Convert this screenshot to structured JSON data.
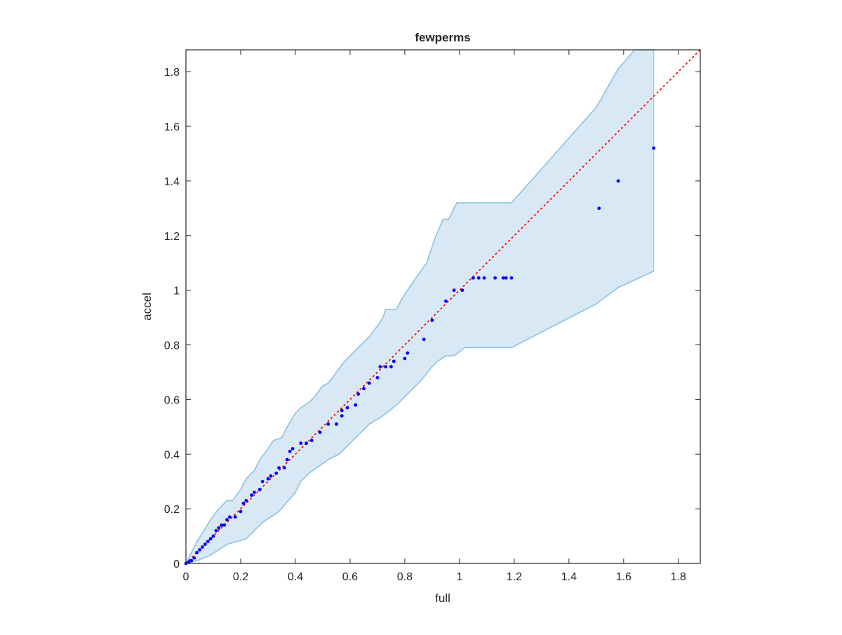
{
  "chart_data": {
    "type": "scatter",
    "title": "fewperms",
    "xlabel": "full",
    "ylabel": "accel",
    "xlim": [
      0,
      1.88
    ],
    "ylim": [
      0,
      1.88
    ],
    "xticks": [
      "0",
      "0.2",
      "0.4",
      "0.6",
      "0.8",
      "1",
      "1.2",
      "1.4",
      "1.6",
      "1.8"
    ],
    "yticks": [
      "0",
      "0.2",
      "0.4",
      "0.6",
      "0.8",
      "1",
      "1.2",
      "1.4",
      "1.6",
      "1.8"
    ],
    "xtick_values": [
      0,
      0.2,
      0.4,
      0.6,
      0.8,
      1,
      1.2,
      1.4,
      1.6,
      1.8
    ],
    "ytick_values": [
      0,
      0.2,
      0.4,
      0.6,
      0.8,
      1,
      1.2,
      1.4,
      1.6,
      1.8
    ],
    "grid": false,
    "colors": {
      "band_fill": "#d8e8f4",
      "band_edge": "#8fc1e0",
      "points": "#0000ff",
      "reference": "#ff0000",
      "axis": "#262626"
    },
    "reference_line": {
      "name": "y = x",
      "style": "dotted",
      "from": [
        0,
        0
      ],
      "to": [
        1.88,
        1.88
      ]
    },
    "band_upper": [
      [
        0,
        0
      ],
      [
        0.02,
        0.04
      ],
      [
        0.04,
        0.08
      ],
      [
        0.06,
        0.11
      ],
      [
        0.09,
        0.16
      ],
      [
        0.12,
        0.2
      ],
      [
        0.15,
        0.23
      ],
      [
        0.17,
        0.23
      ],
      [
        0.2,
        0.27
      ],
      [
        0.22,
        0.31
      ],
      [
        0.25,
        0.34
      ],
      [
        0.27,
        0.38
      ],
      [
        0.3,
        0.42
      ],
      [
        0.32,
        0.45
      ],
      [
        0.35,
        0.46
      ],
      [
        0.37,
        0.5
      ],
      [
        0.4,
        0.55
      ],
      [
        0.42,
        0.57
      ],
      [
        0.45,
        0.59
      ],
      [
        0.47,
        0.61
      ],
      [
        0.5,
        0.65
      ],
      [
        0.52,
        0.66
      ],
      [
        0.55,
        0.7
      ],
      [
        0.58,
        0.74
      ],
      [
        0.61,
        0.77
      ],
      [
        0.64,
        0.8
      ],
      [
        0.67,
        0.83
      ],
      [
        0.7,
        0.87
      ],
      [
        0.72,
        0.9
      ],
      [
        0.73,
        0.93
      ],
      [
        0.77,
        0.93
      ],
      [
        0.79,
        0.97
      ],
      [
        0.83,
        1.03
      ],
      [
        0.88,
        1.1
      ],
      [
        0.91,
        1.19
      ],
      [
        0.94,
        1.26
      ],
      [
        0.96,
        1.26
      ],
      [
        0.99,
        1.32
      ],
      [
        1.19,
        1.32
      ],
      [
        1.5,
        1.67
      ],
      [
        1.58,
        1.81
      ],
      [
        1.64,
        1.88
      ],
      [
        1.71,
        1.88
      ]
    ],
    "band_lower": [
      [
        0,
        0
      ],
      [
        0.04,
        0.01
      ],
      [
        0.09,
        0.03
      ],
      [
        0.15,
        0.07
      ],
      [
        0.22,
        0.09
      ],
      [
        0.28,
        0.15
      ],
      [
        0.34,
        0.19
      ],
      [
        0.4,
        0.26
      ],
      [
        0.42,
        0.3
      ],
      [
        0.45,
        0.33
      ],
      [
        0.52,
        0.38
      ],
      [
        0.56,
        0.4
      ],
      [
        0.6,
        0.44
      ],
      [
        0.64,
        0.48
      ],
      [
        0.67,
        0.51
      ],
      [
        0.72,
        0.54
      ],
      [
        0.77,
        0.58
      ],
      [
        0.82,
        0.63
      ],
      [
        0.86,
        0.67
      ],
      [
        0.9,
        0.72
      ],
      [
        0.92,
        0.74
      ],
      [
        0.95,
        0.76
      ],
      [
        0.98,
        0.76
      ],
      [
        1.02,
        0.79
      ],
      [
        1.19,
        0.79
      ],
      [
        1.5,
        0.95
      ],
      [
        1.58,
        1.01
      ],
      [
        1.71,
        1.07
      ]
    ],
    "points": [
      [
        0,
        0
      ],
      [
        0.01,
        0.005
      ],
      [
        0.02,
        0.01
      ],
      [
        0.03,
        0.02
      ],
      [
        0.04,
        0.04
      ],
      [
        0.05,
        0.05
      ],
      [
        0.06,
        0.06
      ],
      [
        0.07,
        0.07
      ],
      [
        0.08,
        0.08
      ],
      [
        0.09,
        0.09
      ],
      [
        0.1,
        0.1
      ],
      [
        0.11,
        0.12
      ],
      [
        0.12,
        0.13
      ],
      [
        0.13,
        0.14
      ],
      [
        0.14,
        0.14
      ],
      [
        0.15,
        0.16
      ],
      [
        0.16,
        0.17
      ],
      [
        0.18,
        0.17
      ],
      [
        0.2,
        0.19
      ],
      [
        0.21,
        0.22
      ],
      [
        0.22,
        0.23
      ],
      [
        0.24,
        0.25
      ],
      [
        0.25,
        0.26
      ],
      [
        0.27,
        0.27
      ],
      [
        0.28,
        0.3
      ],
      [
        0.3,
        0.31
      ],
      [
        0.31,
        0.32
      ],
      [
        0.33,
        0.33
      ],
      [
        0.34,
        0.35
      ],
      [
        0.36,
        0.35
      ],
      [
        0.37,
        0.38
      ],
      [
        0.38,
        0.41
      ],
      [
        0.39,
        0.42
      ],
      [
        0.42,
        0.44
      ],
      [
        0.44,
        0.44
      ],
      [
        0.46,
        0.45
      ],
      [
        0.49,
        0.48
      ],
      [
        0.52,
        0.51
      ],
      [
        0.55,
        0.51
      ],
      [
        0.57,
        0.54
      ],
      [
        0.57,
        0.56
      ],
      [
        0.59,
        0.57
      ],
      [
        0.62,
        0.58
      ],
      [
        0.63,
        0.62
      ],
      [
        0.65,
        0.64
      ],
      [
        0.67,
        0.66
      ],
      [
        0.7,
        0.68
      ],
      [
        0.71,
        0.72
      ],
      [
        0.73,
        0.72
      ],
      [
        0.75,
        0.72
      ],
      [
        0.76,
        0.74
      ],
      [
        0.8,
        0.75
      ],
      [
        0.81,
        0.77
      ],
      [
        0.87,
        0.82
      ],
      [
        0.9,
        0.89
      ],
      [
        0.95,
        0.96
      ],
      [
        0.98,
        1.0
      ],
      [
        1.01,
        1.0
      ],
      [
        1.05,
        1.045
      ],
      [
        1.07,
        1.045
      ],
      [
        1.09,
        1.045
      ],
      [
        1.13,
        1.045
      ],
      [
        1.16,
        1.045
      ],
      [
        1.17,
        1.045
      ],
      [
        1.19,
        1.045
      ],
      [
        1.51,
        1.3
      ],
      [
        1.58,
        1.4
      ],
      [
        1.71,
        1.52
      ]
    ]
  }
}
